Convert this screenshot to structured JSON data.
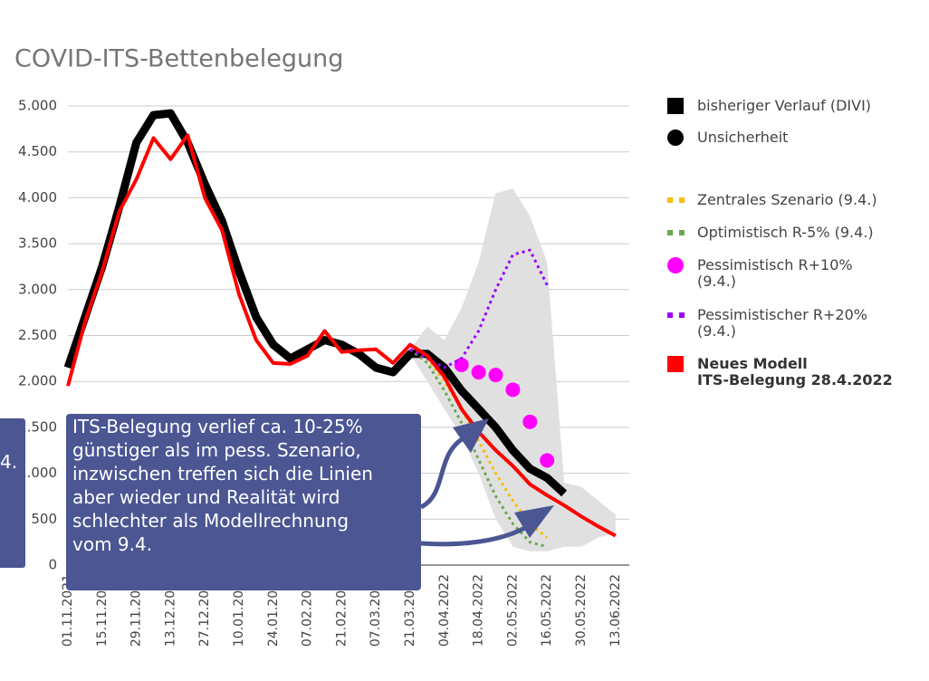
{
  "chart_data": {
    "type": "line",
    "title": "COVID-ITS-Bettenbelegung",
    "categories": [
      "01.11.2021",
      null,
      "15.11.2021",
      null,
      "29.11.2021",
      null,
      "13.12.2021",
      null,
      "27.12.2021",
      null,
      "10.01.2022",
      null,
      "24.01.2022",
      null,
      "07.02.2022",
      null,
      "21.02.2022",
      null,
      "07.03.2022",
      null,
      "21.03.2022",
      null,
      "04.04.2022",
      null,
      "18.04.2022",
      null,
      "02.05.2022",
      null,
      "16.05.2022",
      null,
      "30.05.2022",
      null,
      "13.06.2022"
    ],
    "ylim": [
      0,
      5000
    ],
    "yticks": [
      0,
      500,
      {
        "value": 1000,
        "label": "1.000"
      },
      {
        "value": 1500,
        "label": "1.500"
      },
      {
        "value": 2000,
        "label": "2.000"
      },
      {
        "value": 2500,
        "label": "2.500"
      },
      {
        "value": 3000,
        "label": "3.000"
      },
      {
        "value": 3500,
        "label": "3.500"
      },
      {
        "value": 4000,
        "label": "4.000"
      },
      {
        "value": 4500,
        "label": "4.500"
      },
      {
        "value": 5000,
        "label": "5.000"
      }
    ],
    "grid": true,
    "legend": "right",
    "series": [
      {
        "name": "bisheriger Verlauf (DIVI)",
        "color": "#000000",
        "style": "solid",
        "width": 9,
        "marker": "square",
        "values": [
          2150,
          2700,
          3250,
          3900,
          4600,
          4900,
          4920,
          4600,
          4150,
          3750,
          3200,
          2700,
          2400,
          2250,
          2350,
          2450,
          2400,
          2300,
          2150,
          2100,
          2300,
          2300,
          2150,
          1900,
          1700,
          1500,
          1250,
          1050,
          950,
          780,
          null,
          null,
          null
        ]
      },
      {
        "name": "Unsicherheit",
        "color": "#000000",
        "fill": "#e0e0e0",
        "style": "band",
        "marker": "circle",
        "values": [
          null,
          null,
          null,
          null,
          null,
          null,
          null,
          null,
          null,
          null,
          null,
          null,
          null,
          null,
          null,
          null,
          null,
          null,
          null,
          null,
          2350,
          2600,
          2450,
          2800,
          3300,
          4050,
          4100,
          3800,
          3300,
          900,
          850,
          700,
          550
        ],
        "lower": [
          null,
          null,
          null,
          null,
          null,
          null,
          null,
          null,
          null,
          null,
          null,
          null,
          null,
          null,
          null,
          null,
          null,
          null,
          null,
          null,
          2300,
          2000,
          1700,
          1400,
          1000,
          500,
          200,
          150,
          150,
          200,
          200,
          300,
          350
        ]
      },
      {
        "name": "Zentrales Szenario (9.4.)",
        "color": "#fbbc04",
        "style": "dotted",
        "width": 3,
        "marker": "dots",
        "values": [
          null,
          null,
          null,
          null,
          null,
          null,
          null,
          null,
          null,
          null,
          null,
          null,
          null,
          null,
          null,
          null,
          null,
          null,
          null,
          null,
          2350,
          2250,
          2000,
          1700,
          1350,
          1000,
          700,
          450,
          300,
          null,
          null,
          null,
          null
        ]
      },
      {
        "name": "Optimistisch R-5% (9.4.)",
        "color": "#6aa84f",
        "style": "dotted",
        "width": 3,
        "marker": "dots",
        "values": [
          null,
          null,
          null,
          null,
          null,
          null,
          null,
          null,
          null,
          null,
          null,
          null,
          null,
          null,
          null,
          null,
          null,
          null,
          null,
          null,
          2350,
          2200,
          1900,
          1550,
          1150,
          750,
          450,
          250,
          200,
          null,
          null,
          null,
          null
        ]
      },
      {
        "name": "Pessimistisch R+10%\n(9.4.)",
        "color": "#ff00ff",
        "style": "points",
        "marker": "circle",
        "values": [
          null,
          null,
          null,
          null,
          null,
          null,
          null,
          null,
          null,
          null,
          null,
          null,
          null,
          null,
          null,
          null,
          null,
          null,
          null,
          null,
          null,
          null,
          null,
          2180,
          2100,
          2070,
          1910,
          1560,
          1140,
          null,
          null,
          null,
          null
        ]
      },
      {
        "name": "Pessimistischer R+20%\n(9.4.)",
        "color": "#9900ff",
        "style": "dotted",
        "width": 3,
        "marker": "dots",
        "values": [
          null,
          null,
          null,
          null,
          null,
          null,
          null,
          null,
          null,
          null,
          null,
          null,
          null,
          null,
          null,
          null,
          null,
          null,
          null,
          null,
          2350,
          2250,
          2150,
          2250,
          2550,
          3000,
          3380,
          3430,
          3050,
          null,
          null,
          null,
          null
        ]
      },
      {
        "name": "Neues Modell\nITS-Belegung 28.4.2022",
        "color": "#ff0000",
        "style": "solid",
        "width": 4,
        "marker": "square",
        "bold": true,
        "values": [
          1950,
          2650,
          3200,
          3850,
          4200,
          4650,
          4420,
          4680,
          4000,
          3650,
          2950,
          2450,
          2200,
          2190,
          2280,
          2550,
          2320,
          2340,
          2350,
          2200,
          2400,
          2280,
          2050,
          1700,
          1450,
          1250,
          1080,
          880,
          760,
          650,
          530,
          420,
          320
        ]
      }
    ],
    "annotations": [
      "ITS-Belegung verlief ca. 10-25%\ngünstiger als im pess. Szenario,\ninzwischen treffen sich die Linien\naber wieder und Realität wird\nschlechter als Modellrechnung\nvom 9.4.",
      "4."
    ]
  }
}
